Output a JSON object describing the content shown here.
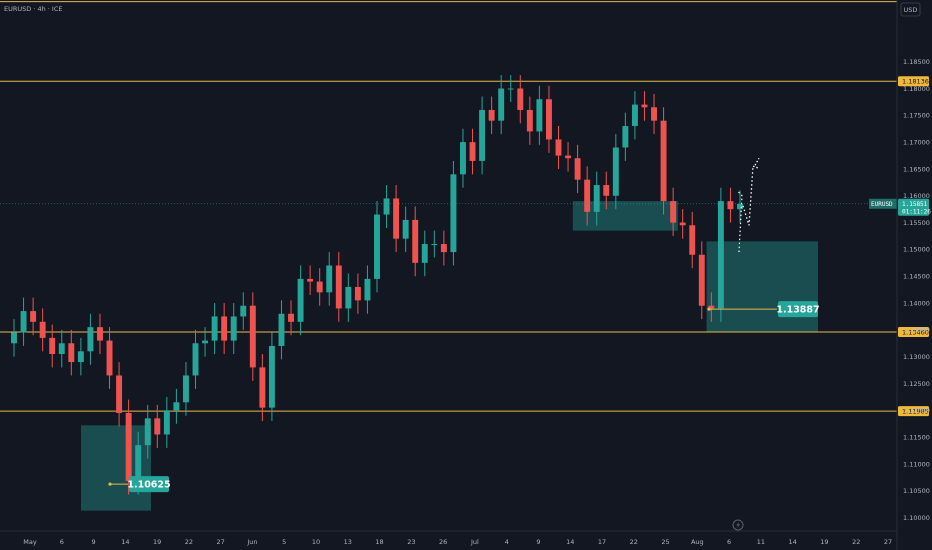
{
  "chart_data": {
    "type": "candlestick",
    "symbol_title": "EURUSD · 4h · ICE",
    "currency": "USD",
    "ylim": [
      1.0975,
      1.1965
    ],
    "y_ticks": [
      1.1,
      1.105,
      1.11,
      1.115,
      1.12,
      1.125,
      1.13,
      1.135,
      1.14,
      1.145,
      1.15,
      1.155,
      1.16,
      1.165,
      1.17,
      1.175,
      1.18,
      1.185
    ],
    "x_ticks": [
      "May",
      "6",
      "9",
      "14",
      "19",
      "22",
      "27",
      "Jun",
      "5",
      "10",
      "13",
      "18",
      "23",
      "26",
      "Jul",
      "4",
      "9",
      "14",
      "17",
      "22",
      "25",
      "Aug",
      "6",
      "11",
      "14",
      "19",
      "22",
      "27"
    ],
    "horizontal_levels": [
      {
        "price": "1.18136",
        "value": 1.18136
      },
      {
        "price": "1.13460",
        "value": 1.1346
      },
      {
        "price": "1.11985",
        "value": 1.11985
      }
    ],
    "top_line": 1.1962,
    "current_price": {
      "symbol": "EURUSD",
      "price": "1.15851",
      "countdown": "01:11:26",
      "value": 1.15851
    },
    "annotations": [
      {
        "text": "1.10625",
        "value": 1.10625
      },
      {
        "text": "1.13887",
        "value": 1.13887
      }
    ],
    "zones": [
      {
        "x0": 0,
        "x1": 8,
        "y_low": 1.1013,
        "y_high": 1.1172
      },
      {
        "x0": 59,
        "x1": 69,
        "y_low": 1.1535,
        "y_high": 1.159
      },
      {
        "x0": 73,
        "x1": 90,
        "y_low": 1.1346,
        "y_high": 1.1515
      }
    ],
    "series": [
      {
        "name": "",
        "close": [
          1.1345,
          1.1385,
          1.1365,
          1.1335,
          1.1305,
          1.1325,
          1.129,
          1.131,
          1.1355,
          1.133,
          1.1265,
          1.1195,
          1.1068,
          1.1135,
          1.1185,
          1.1155,
          1.12,
          1.1215,
          1.1265,
          1.1325,
          1.133,
          1.1375,
          1.133,
          1.1375,
          1.1395,
          1.128,
          1.1205,
          1.132,
          1.138,
          1.1365,
          1.1445,
          1.144,
          1.142,
          1.147,
          1.139,
          1.143,
          1.1405,
          1.1445,
          1.1565,
          1.1595,
          1.152,
          1.1555,
          1.1475,
          1.151,
          1.151,
          1.1495,
          1.164,
          1.17,
          1.1665,
          1.176,
          1.174,
          1.18,
          1.18,
          1.176,
          1.172,
          1.178,
          1.1705,
          1.1675,
          1.167,
          1.163,
          1.157,
          1.162,
          1.16,
          1.169,
          1.173,
          1.177,
          1.1765,
          1.174,
          1.159,
          1.155,
          1.1545,
          1.149,
          1.1395,
          1.139,
          1.159,
          1.1575,
          1.1585
        ]
      }
    ]
  }
}
